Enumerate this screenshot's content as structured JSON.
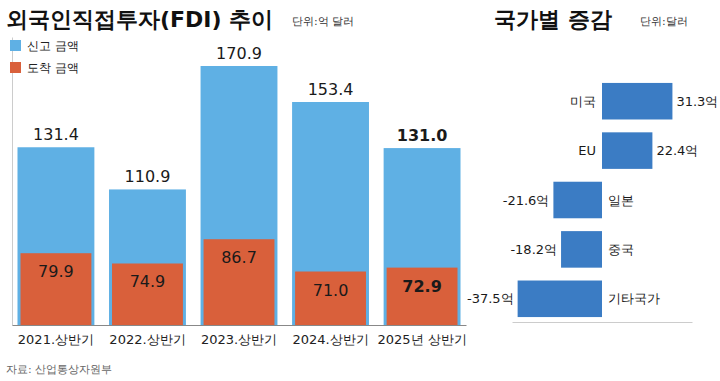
{
  "chart_data": [
    {
      "type": "bar",
      "title": "외국인직접투자(FDI) 추이",
      "subtitle": "단위:억 달러",
      "categories": [
        "2021.상반기",
        "2022.상반기",
        "2023.상반기",
        "2024.상반기",
        "2025년 상반기"
      ],
      "series": [
        {
          "name": "신고 금액",
          "color": "#5fb0e4",
          "values": [
            131.4,
            110.9,
            170.9,
            153.4,
            131.0
          ],
          "value_labels": [
            "131.4",
            "110.9",
            "170.9",
            "153.4",
            "131.0"
          ]
        },
        {
          "name": "도착 금액",
          "color": "#d9603b",
          "values": [
            79.9,
            74.9,
            86.7,
            71.0,
            72.9
          ],
          "value_labels": [
            "79.9",
            "74.9",
            "86.7",
            "71.0",
            "72.9"
          ]
        }
      ],
      "ylim": [
        45,
        185
      ],
      "data_labels": true,
      "tick_labels": "x",
      "legend": "top-left",
      "annotations": [
        "자료: 산업통상자원부"
      ]
    },
    {
      "type": "bar",
      "title": "국가별 증감",
      "subtitle": "단위:달러",
      "orientation": "horizontal",
      "categories": [
        "미국",
        "EU",
        "일본",
        "중국",
        "기타국가"
      ],
      "values": [
        31.3,
        22.4,
        -21.6,
        -18.2,
        -37.5
      ],
      "value_labels": [
        "31.3억",
        "22.4억",
        "-21.6억",
        "-18.2억",
        "-37.5억"
      ],
      "color": "#3b7cc4",
      "xlim": [
        -40,
        40
      ],
      "data_labels": true,
      "tick_labels": false
    }
  ]
}
